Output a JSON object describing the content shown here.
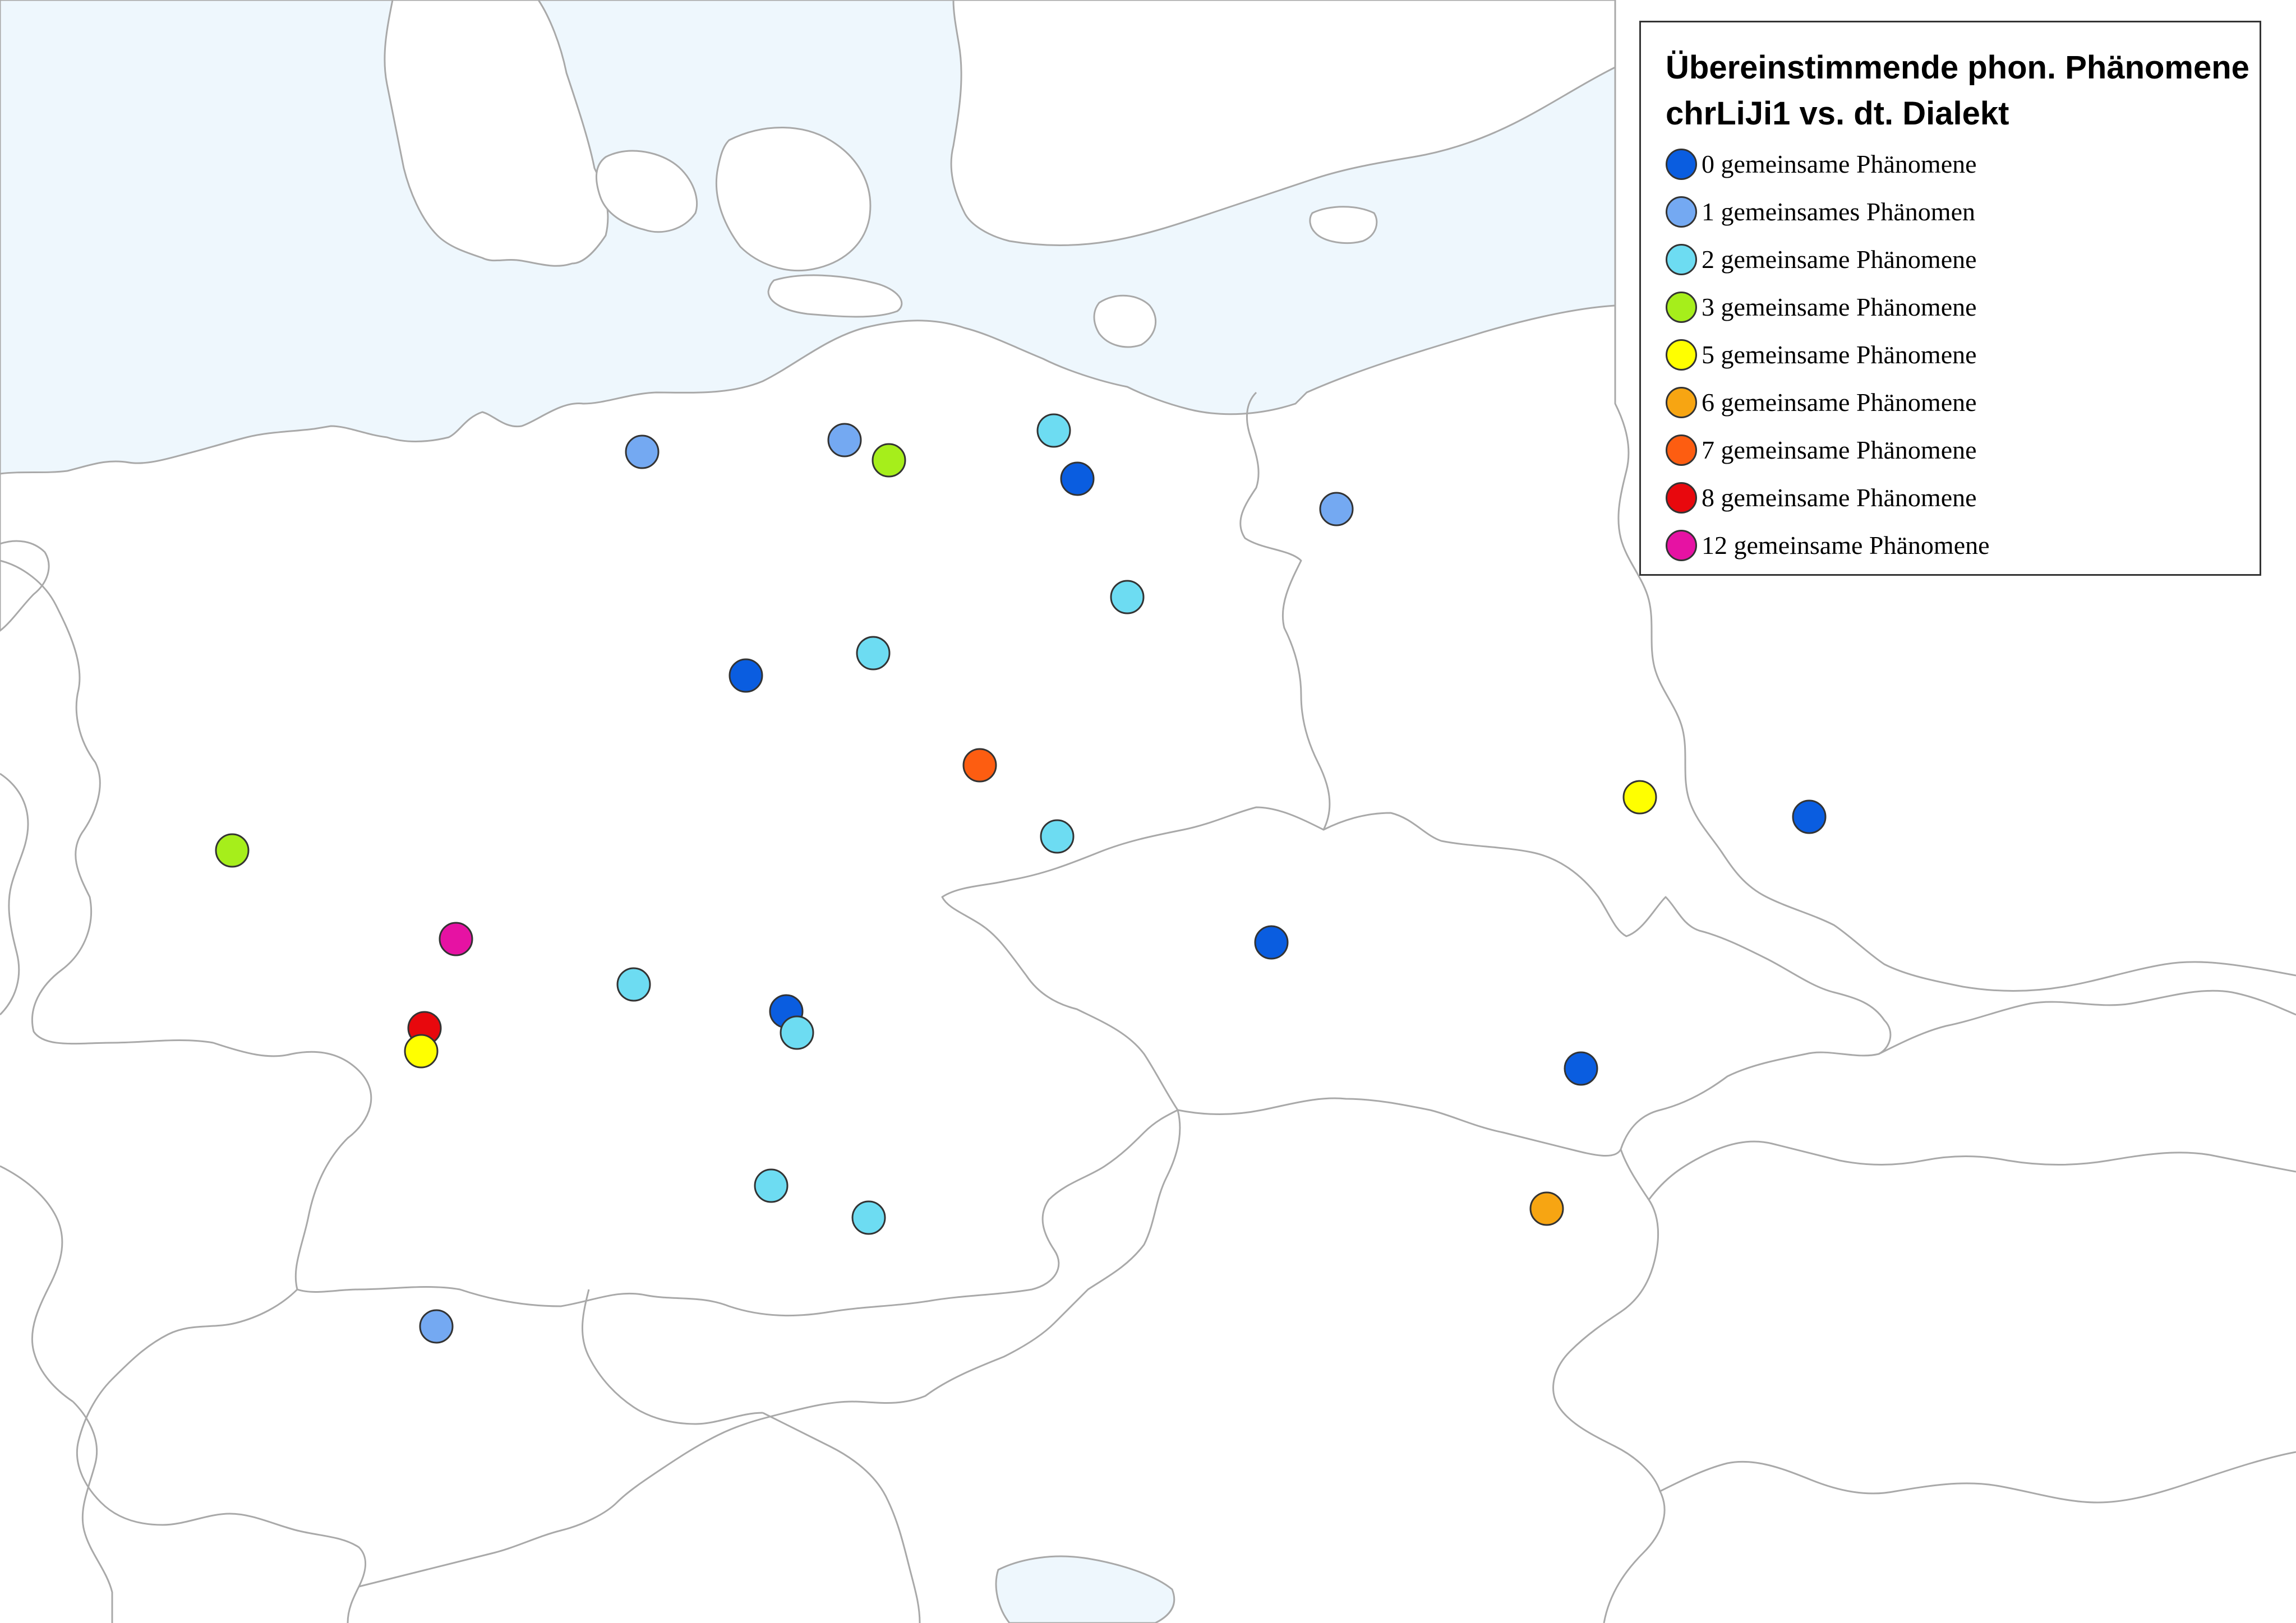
{
  "legend": {
    "title_line1": "Übereinstimmende phon. Phänomene",
    "title_line2": "chrLiJi1 vs. dt. Dialekt",
    "items": [
      {
        "label": "0 gemeinsame Phänomene",
        "color": "#0a5de0"
      },
      {
        "label": "1 gemeinsames Phänomen",
        "color": "#74a9f2"
      },
      {
        "label": "2 gemeinsame Phänomene",
        "color": "#6ddcf2"
      },
      {
        "label": "3 gemeinsame Phänomene",
        "color": "#a6ee1b"
      },
      {
        "label": "5 gemeinsame Phänomene",
        "color": "#ffff00"
      },
      {
        "label": "6 gemeinsame Phänomene",
        "color": "#f7a512"
      },
      {
        "label": "7 gemeinsame Phänomene",
        "color": "#fd5d11"
      },
      {
        "label": "8 gemeinsame Phänomene",
        "color": "#e8080d"
      },
      {
        "label": "12 gemeinsame Phänomene",
        "color": "#e612a3"
      }
    ]
  },
  "sites": [
    {
      "category": 1
    },
    {
      "category": 1
    },
    {
      "category": 3
    },
    {
      "category": 2
    },
    {
      "category": 0
    },
    {
      "category": 1
    },
    {
      "category": 2
    },
    {
      "category": 2
    },
    {
      "category": 0
    },
    {
      "category": 7
    },
    {
      "category": 2
    },
    {
      "category": 5
    },
    {
      "category": 0
    },
    {
      "category": 3
    },
    {
      "category": 12
    },
    {
      "category": 0
    },
    {
      "category": 2
    },
    {
      "category": 8
    },
    {
      "category": 5
    },
    {
      "category": 0
    },
    {
      "category": 2
    },
    {
      "category": 0
    },
    {
      "category": 2
    },
    {
      "category": 2
    },
    {
      "category": 6
    },
    {
      "category": 1
    }
  ]
}
